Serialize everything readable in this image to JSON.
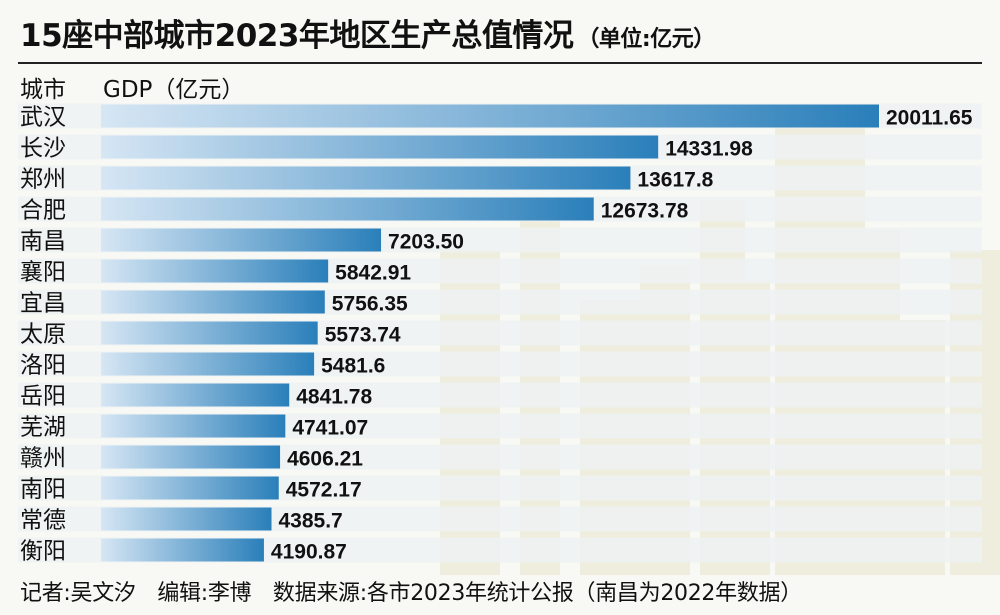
{
  "title": "15座中部城市2023年地区生产总值情况",
  "title_unit": "（单位:亿元）",
  "header": {
    "city_label": "城市",
    "value_label": "GDP（亿元）"
  },
  "footer": "记者:吴文汐　编辑:李博　数据来源:各市2023年统计公报（南昌为2022年数据）",
  "colors": {
    "bar_start": "#d6e6f4",
    "bar_end": "#2a7fba",
    "row_band": "#eef1f4",
    "skyline": "#efeede",
    "text": "#111111"
  },
  "chart_data": {
    "type": "bar",
    "orientation": "horizontal",
    "title": "15座中部城市2023年地区生产总值情况",
    "xlabel": "GDP（亿元）",
    "ylabel": "城市",
    "categories": [
      "武汉",
      "长沙",
      "郑州",
      "合肥",
      "南昌",
      "襄阳",
      "宜昌",
      "太原",
      "洛阳",
      "岳阳",
      "芜湖",
      "赣州",
      "南阳",
      "常德",
      "衡阳"
    ],
    "values": [
      20011.65,
      14331.98,
      13617.8,
      12673.78,
      7203.5,
      5842.91,
      5756.35,
      5573.74,
      5481.6,
      4841.78,
      4741.07,
      4606.21,
      4572.17,
      4385.7,
      4190.87
    ],
    "value_labels": [
      "20011.65",
      "14331.98",
      "13617.8",
      "12673.78",
      "7203.50",
      "5842.91",
      "5756.35",
      "5573.74",
      "5481.6",
      "4841.78",
      "4741.07",
      "4606.21",
      "4572.17",
      "4385.7",
      "4190.87"
    ],
    "xlim": [
      0,
      20011.65
    ]
  }
}
